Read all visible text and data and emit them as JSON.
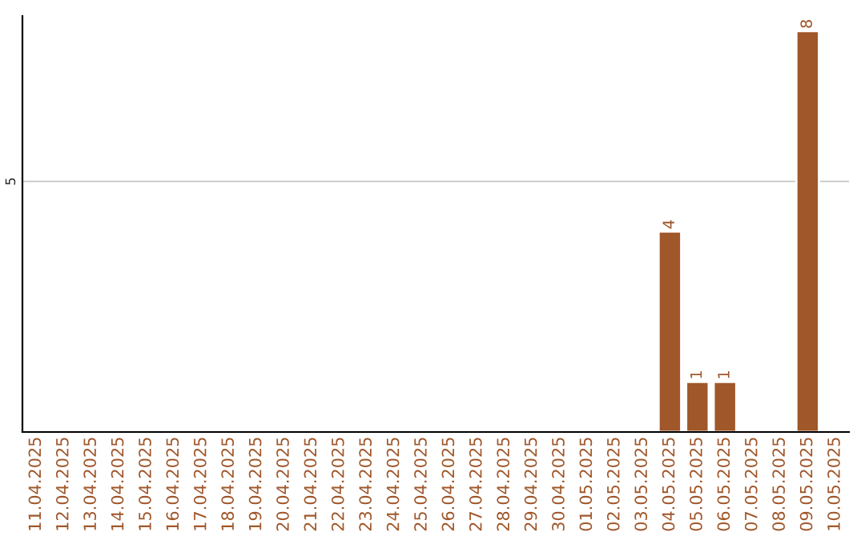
{
  "chart_data": {
    "type": "bar",
    "ylim": [
      0,
      8.3
    ],
    "yticks": [
      5
    ],
    "grid": "y",
    "categories": [
      "11.04.2025",
      "12.04.2025",
      "13.04.2025",
      "14.04.2025",
      "15.04.2025",
      "16.04.2025",
      "17.04.2025",
      "18.04.2025",
      "19.04.2025",
      "20.04.2025",
      "21.04.2025",
      "22.04.2025",
      "23.04.2025",
      "24.04.2025",
      "25.04.2025",
      "26.04.2025",
      "27.04.2025",
      "28.04.2025",
      "29.04.2025",
      "30.04.2025",
      "01.05.2025",
      "02.05.2025",
      "03.05.2025",
      "04.05.2025",
      "05.05.2025",
      "06.05.2025",
      "07.05.2025",
      "08.05.2025",
      "09.05.2025",
      "10.05.2025"
    ],
    "values": [
      null,
      null,
      null,
      null,
      null,
      null,
      null,
      null,
      null,
      null,
      null,
      null,
      null,
      null,
      null,
      null,
      null,
      null,
      null,
      null,
      null,
      null,
      null,
      4,
      1,
      1,
      null,
      null,
      8,
      null
    ],
    "data_labels": true,
    "color": "#a0572a"
  }
}
